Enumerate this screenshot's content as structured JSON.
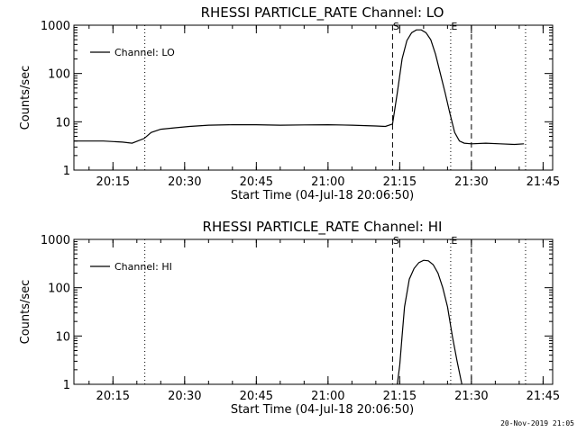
{
  "footer": {
    "timestamp": "20-Nov-2019 21:05"
  },
  "chart_data": [
    {
      "type": "line",
      "title": "RHESSI PARTICLE_RATE Channel: LO",
      "xlabel": "Start Time (04-Jul-18 20:06:50)",
      "ylabel": "Counts/sec",
      "yscale": "log",
      "ylim": [
        1,
        1000
      ],
      "xlim": [
        "20:06:50",
        "21:47:00"
      ],
      "ytick_labels": [
        "1",
        "10",
        "100",
        "1000"
      ],
      "xtick_labels": [
        "20:15",
        "20:30",
        "20:45",
        "21:00",
        "21:15",
        "21:30",
        "21:45"
      ],
      "legend": {
        "entries": [
          "Channel: LO"
        ],
        "placement": "top-left"
      },
      "markers": [
        {
          "label": "S",
          "time": "21:13:30",
          "style": "dashed"
        },
        {
          "label": "E",
          "time": "21:25:40",
          "style": "dotted"
        },
        {
          "label": "",
          "time": "21:30:00",
          "style": "dashed"
        },
        {
          "label": "",
          "time": "20:21:40",
          "style": "dotted"
        },
        {
          "label": "",
          "time": "21:41:20",
          "style": "dotted"
        }
      ],
      "series": [
        {
          "name": "Channel: LO",
          "x": [
            "20:06:50",
            "20:10:00",
            "20:13:00",
            "20:17:00",
            "20:19:00",
            "20:21:30",
            "20:23:00",
            "20:25:00",
            "20:28:00",
            "20:31:00",
            "20:35:00",
            "20:40:00",
            "20:45:00",
            "20:50:00",
            "20:55:00",
            "21:00:00",
            "21:05:00",
            "21:10:00",
            "21:12:00",
            "21:13:30",
            "21:14:30",
            "21:15:30",
            "21:16:30",
            "21:17:30",
            "21:18:30",
            "21:19:30",
            "21:20:30",
            "21:21:30",
            "21:22:30",
            "21:23:30",
            "21:24:30",
            "21:25:30",
            "21:26:30",
            "21:27:30",
            "21:28:30",
            "21:30:00",
            "21:33:00",
            "21:36:00",
            "21:39:00",
            "21:41:00"
          ],
          "y": [
            4,
            4,
            4,
            3.8,
            3.6,
            4.5,
            6,
            7,
            7.5,
            8,
            8.5,
            8.7,
            8.7,
            8.5,
            8.6,
            8.7,
            8.5,
            8.2,
            8,
            9,
            40,
            200,
            480,
            700,
            800,
            800,
            700,
            500,
            250,
            100,
            40,
            15,
            6,
            4,
            3.6,
            3.5,
            3.6,
            3.5,
            3.4,
            3.5
          ]
        }
      ]
    },
    {
      "type": "line",
      "title": "RHESSI PARTICLE_RATE Channel: HI",
      "xlabel": "Start Time (04-Jul-18 20:06:50)",
      "ylabel": "Counts/sec",
      "yscale": "log",
      "ylim": [
        1,
        1000
      ],
      "xlim": [
        "20:06:50",
        "21:47:00"
      ],
      "ytick_labels": [
        "1",
        "10",
        "100",
        "1000"
      ],
      "xtick_labels": [
        "20:15",
        "20:30",
        "20:45",
        "21:00",
        "21:15",
        "21:30",
        "21:45"
      ],
      "legend": {
        "entries": [
          "Channel: HI"
        ],
        "placement": "top-left"
      },
      "markers": [
        {
          "label": "S",
          "time": "21:13:30",
          "style": "dashed"
        },
        {
          "label": "E",
          "time": "21:25:40",
          "style": "dotted"
        },
        {
          "label": "",
          "time": "21:30:00",
          "style": "dashed"
        },
        {
          "label": "",
          "time": "20:21:40",
          "style": "dotted"
        },
        {
          "label": "",
          "time": "21:41:20",
          "style": "dotted"
        }
      ],
      "series": [
        {
          "name": "Channel: HI",
          "x": [
            "21:14:30",
            "21:15:00",
            "21:15:30",
            "21:16:00",
            "21:17:00",
            "21:18:00",
            "21:19:00",
            "21:20:00",
            "21:21:00",
            "21:22:00",
            "21:23:00",
            "21:24:00",
            "21:25:00",
            "21:26:00",
            "21:27:00",
            "21:28:00"
          ],
          "y": [
            1,
            2.5,
            10,
            40,
            150,
            250,
            330,
            370,
            360,
            300,
            200,
            100,
            40,
            10,
            3,
            1
          ]
        }
      ]
    }
  ]
}
